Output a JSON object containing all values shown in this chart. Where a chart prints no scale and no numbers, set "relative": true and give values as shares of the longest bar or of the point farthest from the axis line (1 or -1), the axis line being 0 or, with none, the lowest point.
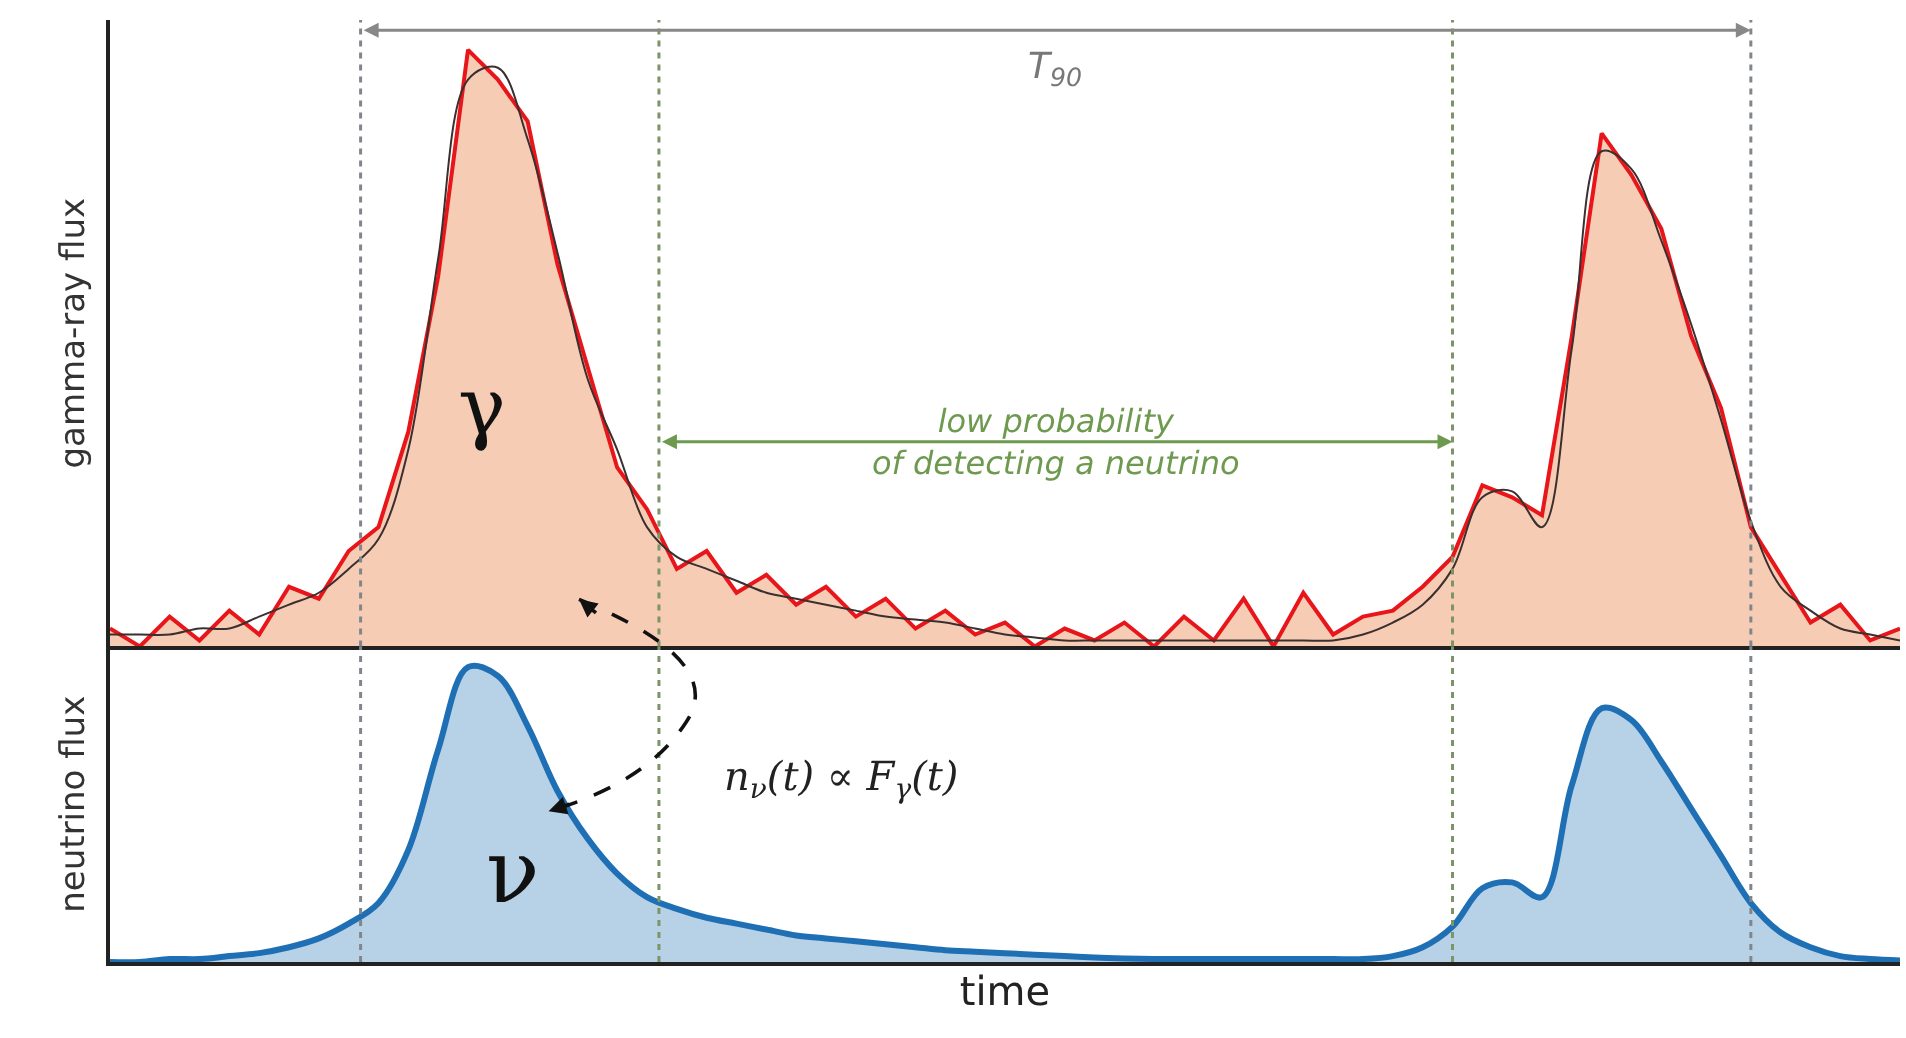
{
  "chart_data": [
    {
      "type": "area",
      "relative": true,
      "ylabel": "gamma-ray flux",
      "categories": [
        null,
        null,
        null,
        null,
        null,
        null,
        null,
        null,
        null,
        null,
        null,
        null,
        null,
        null,
        null,
        null,
        null,
        null,
        null,
        null,
        null,
        null,
        null,
        null,
        null,
        null,
        null,
        null,
        null,
        null,
        null,
        null,
        null,
        null,
        null,
        null,
        null,
        null,
        null,
        null,
        null,
        null,
        null,
        null,
        null,
        null,
        null,
        null,
        null,
        null,
        null,
        null,
        null,
        null,
        null,
        null,
        null,
        null,
        null,
        null,
        null
      ],
      "series": [
        {
          "color": "#e8161b",
          "values": [
            0.03,
            0.0,
            0.05,
            0.01,
            0.06,
            0.02,
            0.1,
            0.08,
            0.16,
            0.2,
            0.36,
            0.62,
            1.0,
            0.95,
            0.88,
            0.64,
            0.47,
            0.3,
            0.23,
            0.13,
            0.16,
            0.09,
            0.12,
            0.07,
            0.1,
            0.05,
            0.08,
            0.03,
            0.06,
            0.02,
            0.04,
            0.0,
            0.03,
            0.01,
            0.04,
            0.0,
            0.05,
            0.01,
            0.08,
            0.0,
            0.09,
            0.02,
            0.05,
            0.06,
            0.1,
            0.15,
            0.27,
            0.25,
            0.22,
            0.52,
            0.86,
            0.79,
            0.7,
            0.52,
            0.4,
            0.2,
            0.12,
            0.04,
            0.07,
            0.01,
            0.03
          ]
        },
        {
          "type": "line",
          "color": "#3b2f2f",
          "values": [
            0.02,
            0.02,
            0.02,
            0.03,
            0.03,
            0.05,
            0.07,
            0.09,
            0.13,
            0.18,
            0.33,
            0.65,
            0.95,
            0.97,
            0.85,
            0.66,
            0.45,
            0.33,
            0.2,
            0.15,
            0.13,
            0.11,
            0.09,
            0.08,
            0.07,
            0.06,
            0.05,
            0.045,
            0.04,
            0.03,
            0.02,
            0.015,
            0.01,
            0.01,
            0.01,
            0.01,
            0.01,
            0.01,
            0.01,
            0.01,
            0.01,
            0.01,
            0.02,
            0.04,
            0.07,
            0.13,
            0.25,
            0.26,
            0.2,
            0.5,
            0.83,
            0.8,
            0.68,
            0.54,
            0.38,
            0.21,
            0.1,
            0.06,
            0.03,
            0.02,
            0.01
          ]
        }
      ],
      "annotations": [
        "T$_{90}$",
        "low probability\nof detecting a neutrino",
        "γ"
      ]
    },
    {
      "type": "area",
      "relative": true,
      "ylabel": "neutrino flux",
      "xlabel": "time",
      "categories": [
        null,
        null,
        null,
        null,
        null,
        null,
        null,
        null,
        null,
        null,
        null,
        null,
        null,
        null,
        null,
        null,
        null,
        null,
        null,
        null,
        null,
        null,
        null,
        null,
        null,
        null,
        null,
        null,
        null,
        null,
        null,
        null,
        null,
        null,
        null,
        null,
        null,
        null,
        null,
        null,
        null,
        null,
        null,
        null,
        null,
        null,
        null,
        null,
        null,
        null,
        null,
        null,
        null,
        null,
        null,
        null,
        null,
        null,
        null,
        null,
        null
      ],
      "series": [
        {
          "color": "#1f6fb5",
          "values": [
            0,
            0,
            0.01,
            0.01,
            0.02,
            0.03,
            0.05,
            0.08,
            0.13,
            0.2,
            0.38,
            0.72,
            1,
            0.97,
            0.8,
            0.58,
            0.42,
            0.3,
            0.22,
            0.18,
            0.15,
            0.13,
            0.11,
            0.09,
            0.08,
            0.07,
            0.06,
            0.05,
            0.04,
            0.035,
            0.03,
            0.025,
            0.02,
            0.015,
            0.012,
            0.01,
            0.01,
            0.01,
            0.01,
            0.01,
            0.01,
            0.01,
            0.01,
            0.02,
            0.05,
            0.12,
            0.25,
            0.27,
            0.22,
            0.6,
            0.86,
            0.82,
            0.68,
            0.52,
            0.36,
            0.2,
            0.1,
            0.05,
            0.02,
            0.01,
            0.005
          ]
        }
      ],
      "annotations": [
        "ν",
        "n$_{ν}$(t) ∝ F$_{γ}$(t)"
      ]
    }
  ]
}
